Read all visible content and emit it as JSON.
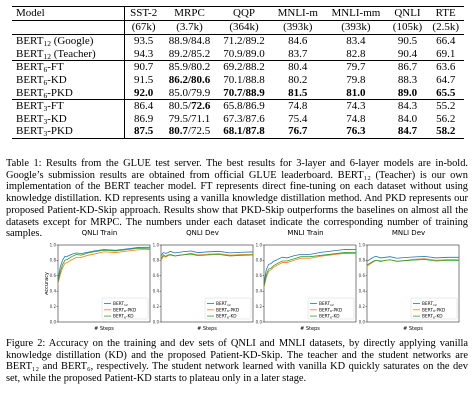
{
  "table": {
    "headers": [
      {
        "name": "Model",
        "sub": ""
      },
      {
        "name": "SST-2",
        "sub": "(67k)"
      },
      {
        "name": "MRPC",
        "sub": "(3.7k)"
      },
      {
        "name": "QQP",
        "sub": "(364k)"
      },
      {
        "name": "MNLI-m",
        "sub": "(393k)"
      },
      {
        "name": "MNLI-mm",
        "sub": "(393k)"
      },
      {
        "name": "QNLI",
        "sub": "(105k)"
      },
      {
        "name": "RTE",
        "sub": "(2.5k)"
      }
    ],
    "sections": [
      [
        {
          "model": "BERT",
          "sub": "12",
          "suffix": " (Google)",
          "cells": [
            [
              "93.5"
            ],
            [
              "88.9/84.8"
            ],
            [
              "71.2/89.2"
            ],
            [
              "84.6"
            ],
            [
              "83.4"
            ],
            [
              "90.5"
            ],
            [
              "66.4"
            ]
          ]
        },
        {
          "model": "BERT",
          "sub": "12",
          "suffix": " (Teacher)",
          "cells": [
            [
              "94.3"
            ],
            [
              "89.2/85.2"
            ],
            [
              "70.9/89.0"
            ],
            [
              "83.7"
            ],
            [
              "82.8"
            ],
            [
              "90.4"
            ],
            [
              "69.1"
            ]
          ]
        }
      ],
      [
        {
          "model": "BERT",
          "sub": "6",
          "suffix": "-FT",
          "cells": [
            [
              "90.7"
            ],
            [
              "85.9/80.2"
            ],
            [
              "69.2/88.2"
            ],
            [
              "80.4"
            ],
            [
              "79.7"
            ],
            [
              "86.7"
            ],
            [
              "63.6"
            ]
          ]
        },
        {
          "model": "BERT",
          "sub": "6",
          "suffix": "-KD",
          "cells": [
            [
              "91.5"
            ],
            [
              "86.2/80.6",
              "b"
            ],
            [
              "70.1/88.8"
            ],
            [
              "80.2"
            ],
            [
              "79.8"
            ],
            [
              "88.3"
            ],
            [
              "64.7"
            ]
          ]
        },
        {
          "model": "BERT",
          "sub": "6",
          "suffix": "-PKD",
          "cells": [
            [
              "92.0",
              "b"
            ],
            [
              "85.0/79.9"
            ],
            [
              "70.7/88.9",
              "b"
            ],
            [
              "81.5",
              "b"
            ],
            [
              "81.0",
              "b"
            ],
            [
              "89.0",
              "b"
            ],
            [
              "65.5",
              "b"
            ]
          ]
        }
      ],
      [
        {
          "model": "BERT",
          "sub": "3",
          "suffix": "-FT",
          "cells": [
            [
              "86.4"
            ],
            [
              "80.5/72.6",
              "b2"
            ],
            [
              "65.8/86.9"
            ],
            [
              "74.8"
            ],
            [
              "74.3"
            ],
            [
              "84.3"
            ],
            [
              "55.2"
            ]
          ]
        },
        {
          "model": "BERT",
          "sub": "3",
          "suffix": "-KD",
          "cells": [
            [
              "86.9"
            ],
            [
              "79.5/71.1"
            ],
            [
              "67.3/87.6"
            ],
            [
              "75.4"
            ],
            [
              "74.8"
            ],
            [
              "84.0"
            ],
            [
              "56.2"
            ]
          ]
        },
        {
          "model": "BERT",
          "sub": "3",
          "suffix": "-PKD",
          "cells": [
            [
              "87.5",
              "b"
            ],
            [
              "80.7/72.5",
              "b1"
            ],
            [
              "68.1/87.8",
              "b"
            ],
            [
              "76.7",
              "b"
            ],
            [
              "76.3",
              "b"
            ],
            [
              "84.7",
              "b"
            ],
            [
              "58.2",
              "b"
            ]
          ]
        }
      ]
    ]
  },
  "caption1": "Table 1: Results from the GLUE test server. The best results for 3-layer and 6-layer models are in-bold. Google’s submission results are obtained from official GLUE leaderboard. BERT₁₂ (Teacher) is our own implementation of the BERT teacher model. FT represents direct fine-tuning on each dataset without using knowledge distillation. KD represents using a vanilla knowledge distillation method. And PKD represents our proposed Patient-KD-Skip approach. Results show that PKD-Skip outperforms the baselines on almost all the datasets except for MRPC. The numbers under each dataset indicate the corresponding number of training samples.",
  "caption2": "Figure 2: Accuracy on the training and dev sets of QNLI and MNLI datasets, by directly applying vanilla knowledge distillation (KD) and the proposed Patient-KD-Skip. The teacher and the student networks are BERT₁₂ and BERT₆, respectively. The student network learned with vanilla KD quickly saturates on the dev set, while the proposed Patient-KD starts to plateau only in a later stage.",
  "figure": {
    "ylabel": "Accuracy",
    "xlabel": "# Steps",
    "legend": [
      "BERT12",
      "BERT6-PKD",
      "BERT6-KD"
    ],
    "colors": {
      "teacher": "#1f77b4",
      "pkd": "#ff7f0e",
      "kd": "#2ca02c"
    }
  },
  "chart_data": [
    {
      "type": "line",
      "title": "QNLI Train",
      "ylabel": "Accuracy",
      "xlabel": "# Steps",
      "ylim": [
        0.0,
        1.0
      ],
      "yticks": [
        "0.0",
        "0.2",
        "0.4",
        "0.6",
        "0.8",
        "1.0"
      ],
      "x": [
        0,
        1,
        2,
        3,
        4,
        6,
        8,
        10,
        13,
        16,
        20,
        25,
        30,
        35,
        40
      ],
      "series": [
        {
          "key": "teacher",
          "values": [
            0.55,
            0.72,
            0.8,
            0.84,
            0.86,
            0.88,
            0.89,
            0.9,
            0.91,
            0.92,
            0.93,
            0.94,
            0.95,
            0.96,
            0.97
          ]
        },
        {
          "key": "pkd",
          "values": [
            0.5,
            0.62,
            0.7,
            0.75,
            0.78,
            0.81,
            0.83,
            0.85,
            0.87,
            0.88,
            0.9,
            0.91,
            0.92,
            0.93,
            0.94
          ]
        },
        {
          "key": "kd",
          "values": [
            0.52,
            0.66,
            0.74,
            0.79,
            0.82,
            0.85,
            0.87,
            0.88,
            0.9,
            0.91,
            0.92,
            0.93,
            0.94,
            0.95,
            0.95
          ]
        }
      ]
    },
    {
      "type": "line",
      "title": "QNLI Dev",
      "ylim": [
        0.0,
        1.0
      ],
      "x": [
        0,
        1,
        2,
        3,
        4,
        6,
        8,
        10,
        13,
        16,
        20,
        25,
        30,
        35,
        40
      ],
      "series": [
        {
          "key": "teacher",
          "values": [
            0.86,
            0.89,
            0.9,
            0.9,
            0.91,
            0.91,
            0.91,
            0.91,
            0.91,
            0.91,
            0.91,
            0.91,
            0.91,
            0.91,
            0.91
          ]
        },
        {
          "key": "pkd",
          "values": [
            0.8,
            0.84,
            0.85,
            0.86,
            0.86,
            0.87,
            0.87,
            0.87,
            0.88,
            0.88,
            0.88,
            0.88,
            0.88,
            0.88,
            0.88
          ]
        },
        {
          "key": "kd",
          "values": [
            0.82,
            0.86,
            0.86,
            0.87,
            0.87,
            0.87,
            0.87,
            0.87,
            0.87,
            0.87,
            0.87,
            0.87,
            0.87,
            0.87,
            0.87
          ]
        }
      ]
    },
    {
      "type": "line",
      "title": "MNLI Train",
      "ylim": [
        0.0,
        1.0
      ],
      "x": [
        0,
        1,
        2,
        3,
        4,
        6,
        8,
        10,
        13,
        16,
        20,
        25,
        30,
        35,
        40
      ],
      "series": [
        {
          "key": "teacher",
          "values": [
            0.5,
            0.68,
            0.74,
            0.77,
            0.79,
            0.81,
            0.83,
            0.84,
            0.86,
            0.87,
            0.89,
            0.91,
            0.92,
            0.93,
            0.94
          ]
        },
        {
          "key": "pkd",
          "values": [
            0.45,
            0.58,
            0.65,
            0.69,
            0.71,
            0.74,
            0.76,
            0.78,
            0.8,
            0.82,
            0.84,
            0.86,
            0.87,
            0.88,
            0.89
          ]
        },
        {
          "key": "kd",
          "values": [
            0.47,
            0.61,
            0.68,
            0.71,
            0.73,
            0.76,
            0.78,
            0.8,
            0.82,
            0.84,
            0.86,
            0.87,
            0.88,
            0.89,
            0.9
          ]
        }
      ]
    },
    {
      "type": "line",
      "title": "MNLI Dev",
      "ylim": [
        0.0,
        1.0
      ],
      "x": [
        0,
        1,
        2,
        3,
        4,
        6,
        8,
        10,
        13,
        16,
        20,
        25,
        30,
        35,
        40
      ],
      "series": [
        {
          "key": "teacher",
          "values": [
            0.79,
            0.82,
            0.83,
            0.84,
            0.84,
            0.84,
            0.84,
            0.84,
            0.84,
            0.84,
            0.84,
            0.84,
            0.84,
            0.84,
            0.84
          ]
        },
        {
          "key": "pkd",
          "values": [
            0.72,
            0.76,
            0.77,
            0.78,
            0.79,
            0.79,
            0.8,
            0.8,
            0.8,
            0.8,
            0.81,
            0.81,
            0.81,
            0.81,
            0.81
          ]
        },
        {
          "key": "kd",
          "values": [
            0.74,
            0.77,
            0.78,
            0.79,
            0.79,
            0.8,
            0.8,
            0.8,
            0.8,
            0.8,
            0.8,
            0.8,
            0.8,
            0.8,
            0.8
          ]
        }
      ]
    }
  ]
}
